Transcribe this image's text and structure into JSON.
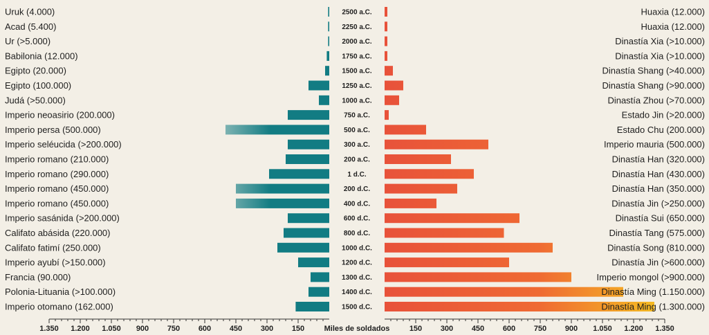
{
  "chart_data": {
    "type": "bar",
    "xlabel": "Miles de soldados",
    "xlim": [
      0,
      1350
    ],
    "tick_values": [
      1350,
      1200,
      1050,
      900,
      750,
      600,
      450,
      300,
      150
    ],
    "tick_labels": [
      "1.350",
      "1.200",
      "1.050",
      "900",
      "750",
      "600",
      "450",
      "300",
      "150"
    ],
    "categories": [
      "2500 a.C.",
      "2250 a.C.",
      "2000 a.C.",
      "1750 a.C.",
      "1500 a.C.",
      "1250 a.C.",
      "1000 a.C.",
      "750 a.C.",
      "500 a.C.",
      "300 a.C.",
      "200 a.C.",
      "1 d.C.",
      "200 d.C.",
      "400 d.C.",
      "600 d.C.",
      "800 d.C.",
      "1000 d.C.",
      "1200 d.C.",
      "1300 d.C.",
      "1400 d.C.",
      "1500 d.C."
    ],
    "colors": {
      "left": "#127c83",
      "right_start": "#e8523a",
      "right_end": "#f6c221",
      "axis": "#333333"
    },
    "series": [
      {
        "side": "left",
        "labels": [
          "Uruk (4.000)",
          "Acad (5.400)",
          "Ur (>5.000)",
          "Babilonia (12.000)",
          "Egipto (20.000)",
          "Egipto (100.000)",
          "Judá (>50.000)",
          "Imperio neoasirio (200.000)",
          "Imperio persa (500.000)",
          "Imperio seléucida (>200.000)",
          "Imperio romano (210.000)",
          "Imperio romano (290.000)",
          "Imperio romano (450.000)",
          "Imperio romano (450.000)",
          "Imperio sasánida (>200.000)",
          "Califato abásida (220.000)",
          "Califato fatimí (250.000)",
          "Imperio ayubí (>150.000)",
          "Francia (90.000)",
          "Polonia-Lituania (>100.000)",
          "Imperio otomano (162.000)"
        ],
        "values": [
          4,
          5.4,
          5,
          12,
          20,
          100,
          50,
          200,
          500,
          200,
          210,
          290,
          450,
          450,
          200,
          220,
          250,
          150,
          90,
          100,
          162
        ]
      },
      {
        "side": "right",
        "labels": [
          "Huaxia (12.000)",
          "Huaxia (12.000)",
          "Dinastía Xia (>10.000)",
          "Dinastía Xia (>10.000)",
          "Dinastía Shang (>40.000)",
          "Dinastía Shang (>90.000)",
          "Dinastía Zhou (>70.000)",
          "Estado Jin (>20.000)",
          "Estado Chu (200.000)",
          "Imperio mauria (500.000)",
          "Dinastía Han (320.000)",
          "Dinastía Han (430.000)",
          "Dinastía Han (350.000)",
          "Dinastía Jin (>250.000)",
          "Dinastía Sui (650.000)",
          "Dinastía Tang (575.000)",
          "Dinastía Song (810.000)",
          "Dinastía Jin (>600.000)",
          "Imperio mongol (>900.000)",
          "Dinastía Ming (1.150.000)",
          "Dinastía Ming (1.300.000)"
        ],
        "values": [
          12,
          12,
          10,
          10,
          40,
          90,
          70,
          20,
          200,
          500,
          320,
          430,
          350,
          250,
          650,
          575,
          810,
          600,
          900,
          1150,
          1300
        ]
      }
    ]
  }
}
